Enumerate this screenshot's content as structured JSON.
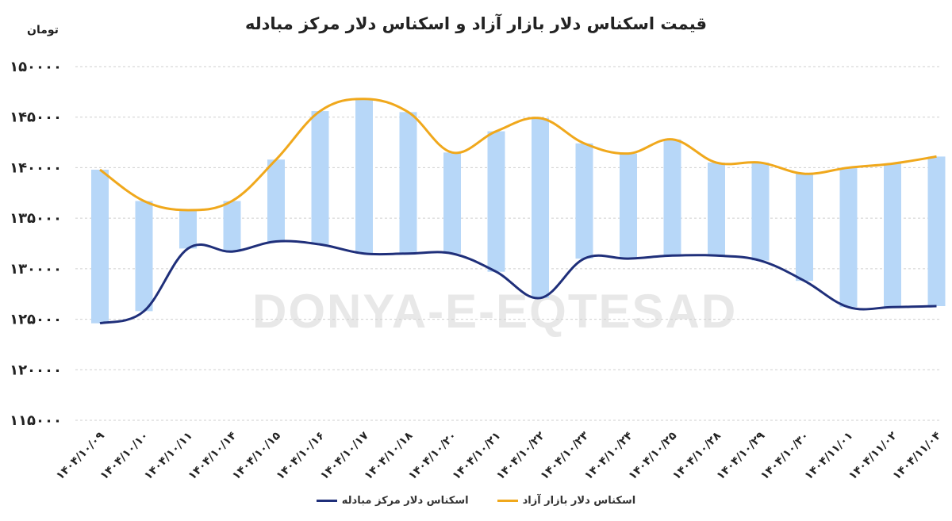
{
  "chart_data": {
    "type": "line",
    "title": "قیمت اسکناس دلار بازار آزاد و اسکناس دلار مرکز مبادله",
    "ylabel": "تومان",
    "ylim": [
      115000,
      150000
    ],
    "yticks": [
      "۱۵۰۰۰۰",
      "۱۴۵۰۰۰",
      "۱۴۰۰۰۰",
      "۱۳۵۰۰۰",
      "۱۳۰۰۰۰",
      "۱۲۵۰۰۰",
      "۱۲۰۰۰۰",
      "۱۱۵۰۰۰"
    ],
    "ytick_values": [
      150000,
      145000,
      140000,
      135000,
      130000,
      125000,
      120000,
      115000
    ],
    "categories": [
      "۱۴۰۴/۱۰/۰۹",
      "۱۴۰۴/۱۰/۱۰",
      "۱۴۰۴/۱۰/۱۱",
      "۱۴۰۴/۱۰/۱۴",
      "۱۴۰۴/۱۰/۱۵",
      "۱۴۰۴/۱۰/۱۶",
      "۱۴۰۴/۱۰/۱۷",
      "۱۴۰۴/۱۰/۱۸",
      "۱۴۰۴/۱۰/۲۰",
      "۱۴۰۴/۱۰/۲۱",
      "۱۴۰۴/۱۰/۲۲",
      "۱۴۰۴/۱۰/۲۳",
      "۱۴۰۴/۱۰/۲۴",
      "۱۴۰۴/۱۰/۲۵",
      "۱۴۰۴/۱۰/۲۸",
      "۱۴۰۴/۱۰/۲۹",
      "۱۴۰۴/۱۰/۳۰",
      "۱۴۰۴/۱۱/۰۱",
      "۱۴۰۴/۱۱/۰۲",
      "۱۴۰۴/۱۱/۰۴"
    ],
    "series": [
      {
        "name": "اسکناس دلار مرکز مبادله",
        "color": "#1f2f7a",
        "values": [
          124600,
          125800,
          132000,
          131700,
          132700,
          132400,
          131500,
          131500,
          131500,
          129700,
          127100,
          131000,
          131000,
          131300,
          131300,
          130800,
          128800,
          126200,
          126200,
          126300
        ]
      },
      {
        "name": "اسکناس دلار بازار آزاد",
        "color": "#f0a81c",
        "values": [
          139800,
          136700,
          135800,
          136700,
          140800,
          145600,
          146800,
          145500,
          141500,
          143600,
          144900,
          142400,
          141400,
          142800,
          140500,
          140500,
          139400,
          140000,
          140400,
          141100
        ]
      }
    ],
    "bar_color": "#b7d7f8",
    "grid": true,
    "legend_position": "bottom",
    "watermark": "DONYA-E-EQTESAD"
  }
}
